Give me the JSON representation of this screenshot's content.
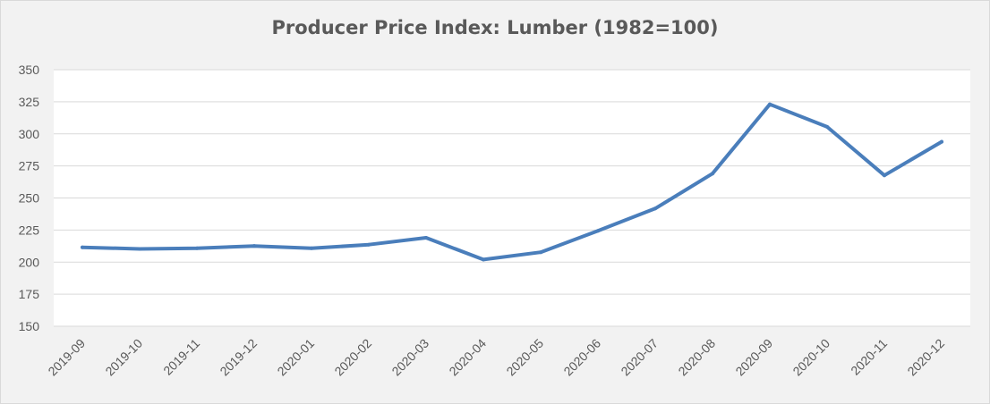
{
  "chart_data": {
    "type": "line",
    "title": "Producer Price Index: Lumber (1982=100)",
    "xlabel": "",
    "ylabel": "",
    "categories": [
      "2019-09",
      "2019-10",
      "2019-11",
      "2019-12",
      "2020-01",
      "2020-02",
      "2020-03",
      "2020-04",
      "2020-05",
      "2020-06",
      "2020-07",
      "2020-08",
      "2020-09",
      "2020-10",
      "2020-11",
      "2020-12"
    ],
    "series": [
      {
        "values": [
          211.5,
          210.3,
          210.8,
          212.6,
          210.8,
          213.6,
          219.0,
          202.0,
          207.7,
          224.4,
          241.8,
          269.0,
          323.0,
          305.5,
          267.6,
          293.8
        ]
      }
    ],
    "ylim": [
      150,
      350
    ],
    "yticks": [
      150,
      175,
      200,
      225,
      250,
      275,
      300,
      325,
      350
    ],
    "grid": true,
    "legend": "none",
    "colors": {
      "line": "#4a7ebb",
      "grid": "#d9d9d9",
      "plot_bg": "#ffffff",
      "chart_bg": "#f2f2f2"
    }
  }
}
